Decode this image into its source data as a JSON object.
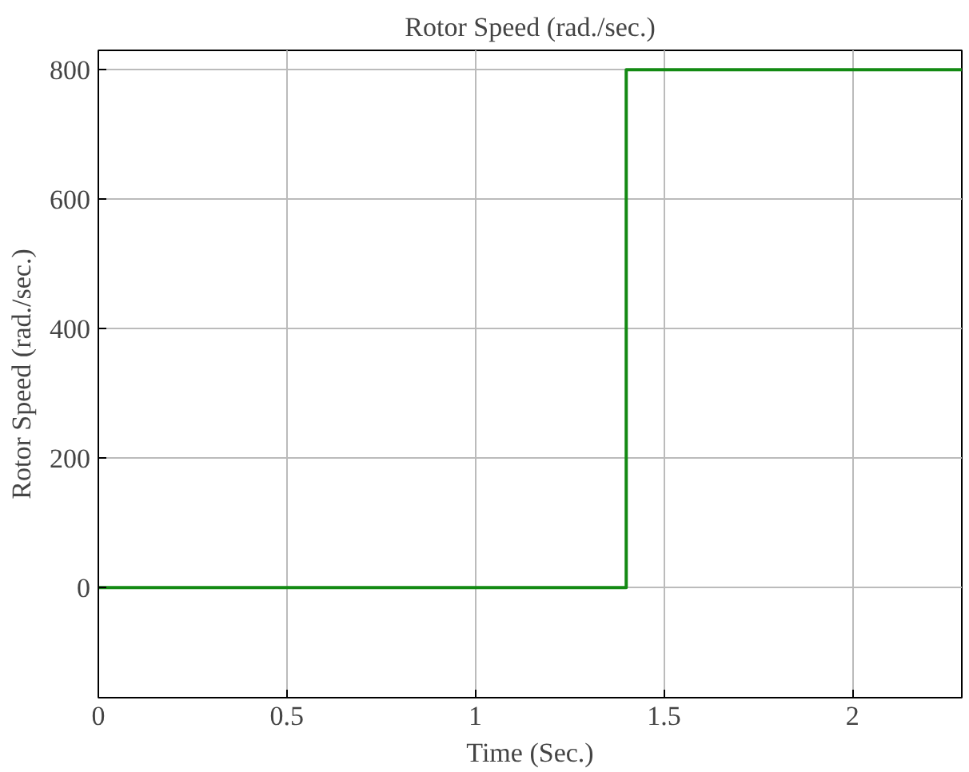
{
  "chart_data": {
    "type": "line",
    "title": "Rotor Speed (rad./sec.)",
    "xlabel": "Time (Sec.)",
    "ylabel": "Rotor Speed (rad./sec.)",
    "x": [
      0,
      1.4,
      1.4,
      2.29
    ],
    "series": [
      {
        "color": "#138a13",
        "values": [
          0,
          0,
          800,
          800
        ]
      }
    ],
    "xlim": [
      0,
      2.29
    ],
    "xticks": [
      0,
      0.5,
      1,
      1.5,
      2
    ],
    "ylim": [
      -170,
      830
    ],
    "yticks": [
      0,
      200,
      400,
      600,
      800
    ],
    "grid": true,
    "line_style": "solid"
  }
}
